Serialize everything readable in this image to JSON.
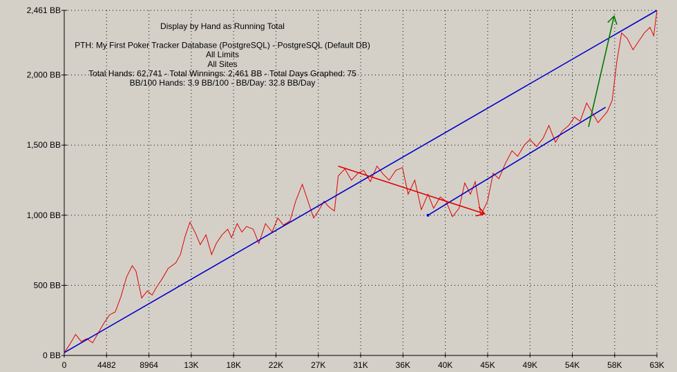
{
  "chart_data": {
    "type": "line",
    "title_lines": [
      "Display by Hand as Running Total",
      "",
      "PTH: My First Poker Tracker Database (PostgreSQL) - PostgreSQL (Default DB)",
      "All Limits",
      "All Sites",
      "Total Hands: 62,741 - Total Winnings: 2,461 BB - Total Days Graphed: 75",
      "BB/100 Hands: 3.9 BB/100 - BB/Day: 32.8 BB/Day"
    ],
    "xlabel": "",
    "ylabel": "",
    "xlim": [
      0,
      62741
    ],
    "ylim": [
      0,
      2461
    ],
    "x_ticks": [
      {
        "value": 0,
        "label": "0"
      },
      {
        "value": 4482,
        "label": "4482"
      },
      {
        "value": 8964,
        "label": "8964"
      },
      {
        "value": 13446,
        "label": "13K"
      },
      {
        "value": 17928,
        "label": "18K"
      },
      {
        "value": 22410,
        "label": "22K"
      },
      {
        "value": 26892,
        "label": "27K"
      },
      {
        "value": 31374,
        "label": "31K"
      },
      {
        "value": 35856,
        "label": "36K"
      },
      {
        "value": 40338,
        "label": "40K"
      },
      {
        "value": 44820,
        "label": "45K"
      },
      {
        "value": 49302,
        "label": "49K"
      },
      {
        "value": 53784,
        "label": "54K"
      },
      {
        "value": 58266,
        "label": "58K"
      },
      {
        "value": 62741,
        "label": "63K"
      }
    ],
    "y_ticks": [
      {
        "value": 0,
        "label": "0 BB"
      },
      {
        "value": 500,
        "label": "500 BB"
      },
      {
        "value": 1000,
        "label": "1,000 BB"
      },
      {
        "value": 1500,
        "label": "1,500 BB"
      },
      {
        "value": 2000,
        "label": "2,000 BB"
      },
      {
        "value": 2461,
        "label": "2,461 BB"
      }
    ],
    "grid": true,
    "series": [
      {
        "color": "#e00000",
        "x": [
          0,
          600,
          1200,
          1800,
          2400,
          3000,
          3600,
          4200,
          4800,
          5400,
          6000,
          6600,
          7200,
          7600,
          8200,
          8800,
          9300,
          9700,
          10300,
          11000,
          11800,
          12300,
          12800,
          13300,
          13900,
          14400,
          15000,
          15600,
          16100,
          16700,
          17300,
          17700,
          18300,
          18800,
          19300,
          20000,
          20600,
          21300,
          22000,
          22600,
          23200,
          23900,
          24500,
          25200,
          25900,
          26400,
          26900,
          27500,
          28000,
          28600,
          29000,
          29700,
          30400,
          31100,
          31700,
          32400,
          33100,
          33800,
          34400,
          35100,
          35800,
          36400,
          37100,
          37800,
          38500,
          39100,
          39800,
          40400,
          41100,
          41800,
          42400,
          43000,
          43500,
          44100,
          44800,
          45400,
          46000,
          46700,
          47400,
          48000,
          48700,
          49300,
          50000,
          50700,
          51300,
          52000,
          52700,
          53400,
          54000,
          54600,
          55300,
          56000,
          56500,
          57000,
          57500,
          58000,
          58500,
          59000,
          59600,
          60200,
          60800,
          61400,
          62000,
          62400,
          62741
        ],
        "y": [
          20,
          80,
          150,
          100,
          120,
          90,
          160,
          230,
          290,
          310,
          420,
          560,
          640,
          600,
          410,
          460,
          430,
          480,
          540,
          620,
          660,
          720,
          850,
          950,
          870,
          790,
          860,
          720,
          800,
          860,
          900,
          840,
          940,
          880,
          920,
          900,
          800,
          940,
          880,
          980,
          930,
          960,
          1100,
          1220,
          1080,
          980,
          1030,
          1100,
          1060,
          1030,
          1280,
          1330,
          1250,
          1300,
          1320,
          1240,
          1350,
          1290,
          1250,
          1320,
          1340,
          1150,
          1250,
          1040,
          1150,
          1050,
          1130,
          1100,
          990,
          1050,
          1230,
          1150,
          1240,
          1000,
          1100,
          1300,
          1260,
          1370,
          1460,
          1420,
          1500,
          1540,
          1490,
          1550,
          1640,
          1520,
          1600,
          1640,
          1700,
          1670,
          1800,
          1720,
          1660,
          1700,
          1740,
          1820,
          2100,
          2300,
          2260,
          2180,
          2240,
          2300,
          2340,
          2280,
          2461
        ]
      },
      {
        "color": "#0000c8",
        "x": [
          0,
          62741
        ],
        "y": [
          20,
          2461
        ]
      },
      {
        "color": "#0000c8",
        "x": [
          38500,
          57300
        ],
        "y": [
          1000,
          1770
        ]
      },
      {
        "color": "#e00000",
        "x": [
          29000,
          44500
        ],
        "y": [
          1350,
          1010
        ]
      },
      {
        "color": "#007800",
        "x": [
          55500,
          58200
        ],
        "y": [
          1630,
          2420
        ]
      }
    ]
  }
}
